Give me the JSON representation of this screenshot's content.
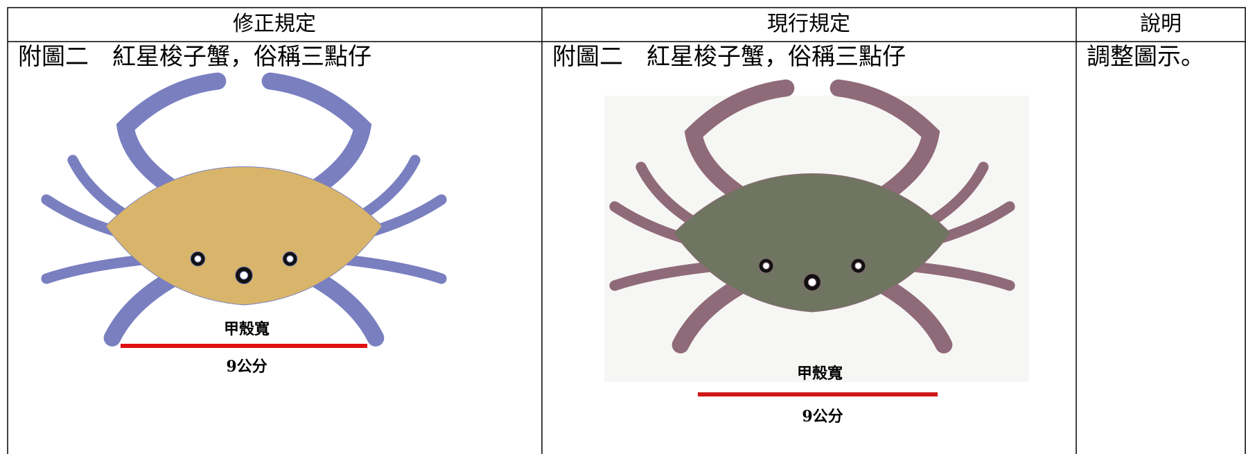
{
  "table": {
    "headers": [
      "修正規定",
      "現行規定",
      "說明"
    ],
    "rows": [
      [
        {
          "caption": "附圖二　紅星梭子蟹，俗稱三點仔",
          "figure": {
            "label": "甲殼寬",
            "measure": "9公分"
          }
        },
        {
          "caption": "附圖二　紅星梭子蟹，俗稱三點仔",
          "figure": {
            "label": "甲殼寬",
            "measure": "9公分"
          }
        },
        {
          "text": "調整圖示。"
        }
      ]
    ]
  }
}
